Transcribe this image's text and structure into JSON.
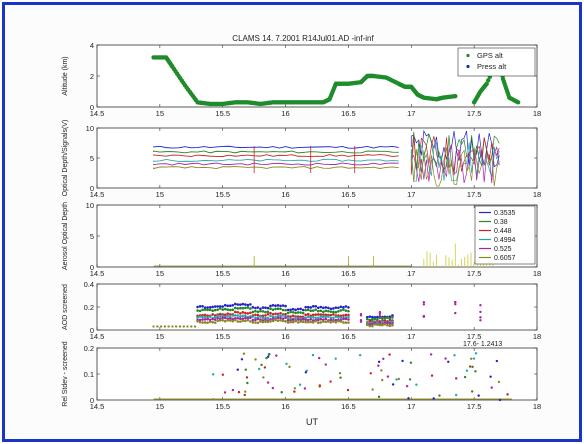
{
  "chart_data": [
    {
      "type": "line",
      "title": "CLAMS 14. 7.2001 R14Jul01.AD -inf-inf",
      "ylabel": "Altitude (km)",
      "xlim": [
        14.5,
        18
      ],
      "ylim": [
        0,
        4
      ],
      "xticks": [
        "14.5",
        "15",
        "15.5",
        "16",
        "16.5",
        "17",
        "17.5",
        "18"
      ],
      "yticks": [
        "0",
        "2",
        "4"
      ],
      "legend": [
        "GPS alt",
        "Press alt"
      ],
      "legend_position": "top-right",
      "series": [
        {
          "name": "GPS alt",
          "color": "#1e8c2a",
          "points": [
            [
              14.95,
              3.2
            ],
            [
              15.05,
              3.2
            ],
            [
              15.1,
              2.6
            ],
            [
              15.2,
              1.4
            ],
            [
              15.3,
              0.3
            ],
            [
              15.4,
              0.2
            ],
            [
              15.5,
              0.2
            ],
            [
              15.6,
              0.3
            ],
            [
              15.7,
              0.3
            ],
            [
              15.8,
              0.2
            ],
            [
              15.9,
              0.3
            ],
            [
              16.0,
              0.3
            ],
            [
              16.1,
              0.3
            ],
            [
              16.2,
              0.3
            ],
            [
              16.3,
              0.3
            ],
            [
              16.35,
              0.5
            ],
            [
              16.4,
              1.5
            ],
            [
              16.5,
              1.5
            ],
            [
              16.6,
              1.6
            ],
            [
              16.65,
              2.0
            ],
            [
              16.7,
              2.0
            ],
            [
              16.8,
              1.9
            ],
            [
              16.9,
              1.5
            ],
            [
              16.95,
              1.3
            ],
            [
              17.0,
              1.3
            ],
            [
              17.05,
              0.8
            ],
            [
              17.1,
              0.6
            ],
            [
              17.2,
              0.5
            ],
            [
              17.25,
              0.6
            ],
            [
              17.35,
              0.7
            ]
          ]
        },
        {
          "name": "Press alt",
          "color": "#1e8c2a",
          "points": [
            [
              17.5,
              0.3
            ],
            [
              17.55,
              1.0
            ],
            [
              17.6,
              1.5
            ],
            [
              17.7,
              3.3
            ],
            [
              17.73,
              1.8
            ],
            [
              17.78,
              0.6
            ],
            [
              17.85,
              0.3
            ]
          ]
        }
      ]
    },
    {
      "type": "line",
      "ylabel": "Optical Depth/Signals(V)",
      "xlim": [
        14.5,
        18
      ],
      "ylim": [
        0,
        10
      ],
      "xticks": [
        "14.5",
        "15",
        "15.5",
        "16",
        "16.5",
        "17",
        "17.5",
        "18"
      ],
      "yticks": [
        "0",
        "5",
        "10"
      ],
      "series": [
        {
          "color": "#2222cc",
          "level": 6.8
        },
        {
          "color": "#228822",
          "level": 6.0
        },
        {
          "color": "#cc2222",
          "level": 5.4
        },
        {
          "color": "#22aaaa",
          "level": 4.6
        },
        {
          "color": "#aa22aa",
          "level": 4.0
        },
        {
          "color": "#888822",
          "level": 3.4
        }
      ]
    },
    {
      "type": "line",
      "ylabel": "Aerosol Optical Depth",
      "xlim": [
        14.5,
        18
      ],
      "ylim": [
        0,
        10
      ],
      "xticks": [
        "14.5",
        "15",
        "15.5",
        "16",
        "16.5",
        "17",
        "17.5",
        "18"
      ],
      "yticks": [
        "0",
        "5",
        "10"
      ],
      "legend": [
        "0.3535",
        "0.38",
        "0.448",
        "0.4994",
        "0.525",
        "0.6057"
      ],
      "legend_colors": [
        "#2222cc",
        "#228822",
        "#cc2222",
        "#22aaaa",
        "#aa22aa",
        "#888822"
      ],
      "legend_position": "right"
    },
    {
      "type": "scatter",
      "ylabel": "AOD screened",
      "xlim": [
        14.5,
        18
      ],
      "ylim": [
        0,
        0.4
      ],
      "xticks": [
        "14.5",
        "15",
        "15.5",
        "16",
        "16.5",
        "17",
        "17.5",
        "18"
      ],
      "yticks": [
        "0",
        "0.2",
        "0.4"
      ],
      "series": [
        {
          "color": "#2222cc",
          "values": [
            0.2,
            0.21,
            0.22,
            0.19,
            0.21,
            0.18,
            0.2,
            0.19,
            0.2
          ]
        },
        {
          "color": "#228822",
          "values": [
            0.17,
            0.18,
            0.19,
            0.16,
            0.18,
            0.15,
            0.17,
            0.16,
            0.17
          ]
        },
        {
          "color": "#cc2222",
          "values": [
            0.13,
            0.14,
            0.15,
            0.13,
            0.14,
            0.12,
            0.13,
            0.13,
            0.13
          ]
        },
        {
          "color": "#22aaaa",
          "values": [
            0.11,
            0.12,
            0.12,
            0.11,
            0.12,
            0.1,
            0.11,
            0.11,
            0.11
          ]
        },
        {
          "color": "#aa22aa",
          "values": [
            0.09,
            0.1,
            0.1,
            0.09,
            0.1,
            0.09,
            0.09,
            0.09,
            0.09
          ]
        },
        {
          "color": "#888822",
          "values": [
            0.07,
            0.08,
            0.08,
            0.07,
            0.08,
            0.07,
            0.07,
            0.07,
            0.07
          ]
        }
      ]
    },
    {
      "type": "scatter",
      "ylabel": "Rel Stdev - screened",
      "xlabel": "UT",
      "xlim": [
        14.5,
        18
      ],
      "ylim": [
        0,
        0.2
      ],
      "xticks": [
        "14.5",
        "15",
        "15.5",
        "16",
        "16.5",
        "17",
        "17.5",
        "18"
      ],
      "yticks": [
        "0",
        "0.1",
        "0.2"
      ],
      "annotation": "17.6- 1.2413"
    }
  ]
}
